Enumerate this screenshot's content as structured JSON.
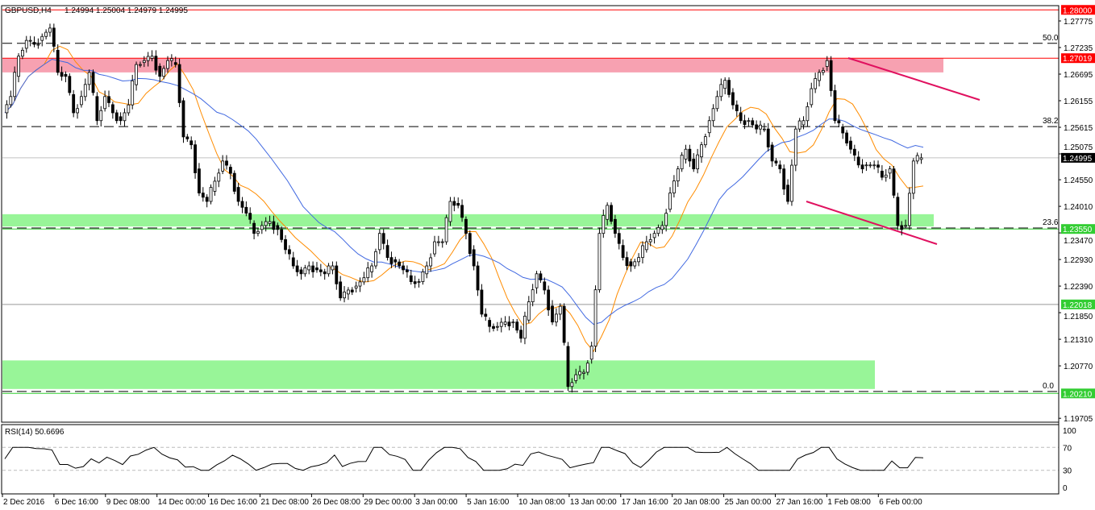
{
  "header": {
    "symbol": "GBPUSD,H4",
    "ohlc": "1.24994 1.25004 1.24979 1.24995"
  },
  "rsi_panel": {
    "label": "RSI(14) 50.6696",
    "levels": [
      "100",
      "70",
      "30",
      "0"
    ]
  },
  "colors": {
    "bull": "#ffffff",
    "bear": "#000000",
    "fast_ma": "#ff8c00",
    "slow_ma": "#4169e1",
    "resistance": "#ff0000",
    "support": "#32cd32",
    "resistance_zone": "#f7a1b1",
    "support_zone": "#98f598",
    "trendline": "#e0115f"
  },
  "chart_data": {
    "type": "candlestick",
    "title": "GBPUSD,H4",
    "ylim": [
      1.19705,
      1.2825
    ],
    "y_ticks": [
      "1.27775",
      "1.27235",
      "1.26695",
      "1.26155",
      "1.25615",
      "1.25075",
      "1.24550",
      "1.24010",
      "1.23470",
      "1.22930",
      "1.22390",
      "1.21850",
      "1.21310",
      "1.20770",
      "1.19705"
    ],
    "x_ticks": [
      "2 Dec 2016",
      "6 Dec 16:00",
      "9 Dec 08:00",
      "14 Dec 00:00",
      "16 Dec 16:00",
      "21 Dec 08:00",
      "26 Dec 08:00",
      "29 Dec 00:00",
      "3 Jan 00:00",
      "5 Jan 16:00",
      "10 Jan 08:00",
      "13 Jan 00:00",
      "17 Jan 16:00",
      "20 Jan 08:00",
      "25 Jan 00:00",
      "27 Jan 16:00",
      "1 Feb 08:00",
      "6 Feb 00:00"
    ],
    "closes": [
      1.2591,
      1.2624,
      1.2706,
      1.2738,
      1.273,
      1.2746,
      1.2763,
      1.2673,
      1.2665,
      1.2591,
      1.2624,
      1.2673,
      1.2575,
      1.2624,
      1.2591,
      1.2575,
      1.2607,
      1.2689,
      1.2697,
      1.2706,
      1.2665,
      1.2697,
      1.2689,
      1.2542,
      1.2526,
      1.2428,
      1.2411,
      1.2452,
      1.2493,
      1.2468,
      1.2411,
      1.2387,
      1.2346,
      1.2362,
      1.237,
      1.2354,
      1.2313,
      1.228,
      1.2264,
      1.228,
      1.2272,
      1.2264,
      1.228,
      1.2215,
      1.2231,
      1.2239,
      1.2256,
      1.228,
      1.2346,
      1.2297,
      1.2288,
      1.2272,
      1.2248,
      1.2248,
      1.228,
      1.2329,
      1.2329,
      1.2411,
      1.2403,
      1.2346,
      1.228,
      1.2182,
      1.2157,
      1.2157,
      1.2166,
      1.2166,
      1.2133,
      1.2207,
      1.2264,
      1.2231,
      1.2166,
      1.2198,
      1.2035,
      1.2059,
      1.2064,
      1.2117,
      1.2346,
      1.2403,
      1.2346,
      1.2297,
      1.228,
      1.2297,
      1.2329,
      1.2346,
      1.2362,
      1.2428,
      1.2477,
      1.2517,
      1.2477,
      1.2526,
      1.2575,
      1.2624,
      1.2657,
      1.2607,
      1.2575,
      1.2575,
      1.2558,
      1.2558,
      1.2493,
      1.2477,
      1.2411,
      1.2558,
      1.2575,
      1.264,
      1.2673,
      1.2697,
      1.2575,
      1.255,
      1.2517,
      1.2485,
      1.2485,
      1.2485,
      1.246,
      1.2477,
      1.2362,
      1.2362,
      1.2493,
      1.24995
    ],
    "levels": [
      {
        "price": 1.28,
        "label": "1.28000",
        "kind": "resistance"
      },
      {
        "price": 1.27019,
        "label": "1.27019",
        "kind": "resistance"
      },
      {
        "price": 1.24995,
        "label": "1.24995",
        "kind": "current"
      },
      {
        "price": 1.2355,
        "label": "1.23550",
        "kind": "support"
      },
      {
        "price": 1.22018,
        "label": "1.22018",
        "kind": "support"
      },
      {
        "price": 1.2021,
        "label": "1.20210",
        "kind": "support"
      }
    ],
    "fib_levels": [
      {
        "label": "50.0",
        "price": 1.2732
      },
      {
        "label": "38.2",
        "price": 1.2563
      },
      {
        "label": "23.6",
        "price": 1.2357
      },
      {
        "label": "0.0",
        "price": 1.2025
      }
    ],
    "zones": [
      {
        "from": 1.27019,
        "to": 1.2673,
        "kind": "resistance"
      },
      {
        "from": 1.2385,
        "to": 1.236,
        "kind": "support"
      },
      {
        "from": 1.2088,
        "to": 1.203,
        "kind": "support"
      }
    ]
  }
}
